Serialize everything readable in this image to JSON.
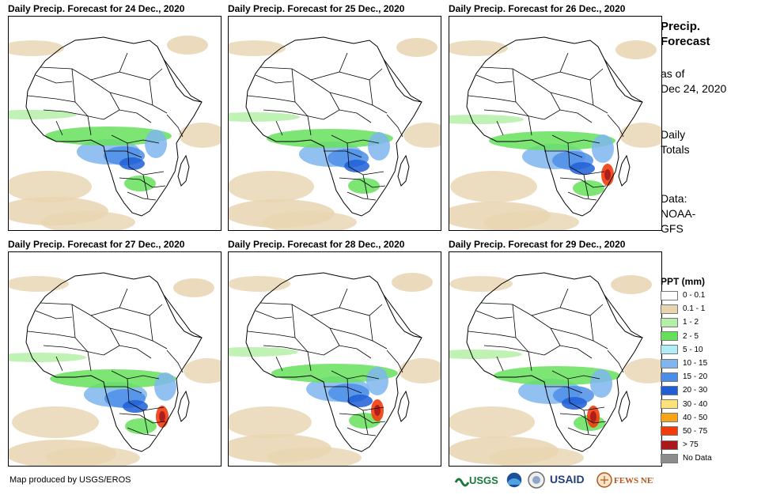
{
  "panels": [
    {
      "title": "Daily Precip. Forecast for 24 Dec., 2020"
    },
    {
      "title": "Daily Precip. Forecast for 25 Dec., 2020"
    },
    {
      "title": "Daily Precip. Forecast for 26 Dec., 2020"
    },
    {
      "title": "Daily Precip. Forecast for 27 Dec., 2020"
    },
    {
      "title": "Daily Precip. Forecast for 28 Dec., 2020"
    },
    {
      "title": "Daily Precip. Forecast for 29 Dec., 2020"
    }
  ],
  "side": {
    "title_line1": "Precip.",
    "title_line2": "Forecast",
    "asof_line1": "as of",
    "asof_line2": "Dec 24, 2020",
    "totals_line1": "Daily",
    "totals_line2": "Totals",
    "data_line1": "Data:",
    "data_line2": "NOAA-",
    "data_line3": "GFS"
  },
  "legend": {
    "title": "PPT (mm)",
    "items": [
      {
        "label": "0 - 0.1",
        "color": "#ffffff"
      },
      {
        "label": "0.1 - 1",
        "color": "#e8d5b0"
      },
      {
        "label": "1 - 2",
        "color": "#b5f0a8"
      },
      {
        "label": "2 - 5",
        "color": "#66e05a"
      },
      {
        "label": "5 - 10",
        "color": "#b0ecf6"
      },
      {
        "label": "10 - 15",
        "color": "#7fb6ef"
      },
      {
        "label": "15 - 20",
        "color": "#4c8ee6"
      },
      {
        "label": "20 - 30",
        "color": "#1e5fd6"
      },
      {
        "label": "30 - 40",
        "color": "#fde27a"
      },
      {
        "label": "40 - 50",
        "color": "#f7a418"
      },
      {
        "label": "50 - 75",
        "color": "#f03c0c"
      },
      {
        "label": "> 75",
        "color": "#a8181c"
      },
      {
        "label": "No Data",
        "color": "#8c8c8c"
      }
    ]
  },
  "credit": "Map produced by USGS/EROS",
  "logos": {
    "usgs": "USGS",
    "usaid": "USAID",
    "fewsnet": "FEWS NET"
  }
}
